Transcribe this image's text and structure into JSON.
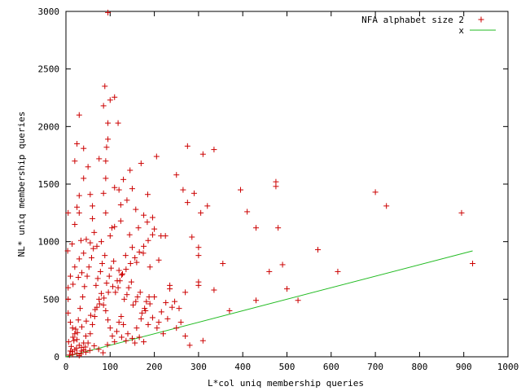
{
  "chart_data": {
    "type": "scatter",
    "title": "",
    "xlabel": "L*col uniq membership queries",
    "ylabel": "NL* uniq membership queries",
    "xlim": [
      0,
      1000
    ],
    "ylim": [
      0,
      3000
    ],
    "x_ticks": [
      0,
      100,
      200,
      300,
      400,
      500,
      600,
      700,
      800,
      900,
      1000
    ],
    "y_ticks": [
      0,
      500,
      1000,
      1500,
      2000,
      2500,
      3000
    ],
    "grid": false,
    "legend_position": "top-right",
    "series": [
      {
        "name": "NFA alphabet size 2",
        "marker": "+",
        "color": "#cc0000",
        "points": [
          [
            95,
            2990
          ],
          [
            88,
            2350
          ],
          [
            110,
            2255
          ],
          [
            85,
            2180
          ],
          [
            100,
            2230
          ],
          [
            30,
            2100
          ],
          [
            95,
            2030
          ],
          [
            118,
            2030
          ],
          [
            95,
            1890
          ],
          [
            92,
            1820
          ],
          [
            25,
            1850
          ],
          [
            40,
            1810
          ],
          [
            275,
            1830
          ],
          [
            335,
            1800
          ],
          [
            310,
            1760
          ],
          [
            205,
            1740
          ],
          [
            75,
            1720
          ],
          [
            20,
            1700
          ],
          [
            50,
            1650
          ],
          [
            90,
            1700
          ],
          [
            130,
            1540
          ],
          [
            145,
            1620
          ],
          [
            170,
            1680
          ],
          [
            250,
            1580
          ],
          [
            90,
            1550
          ],
          [
            40,
            1550
          ],
          [
            30,
            1400
          ],
          [
            25,
            1300
          ],
          [
            55,
            1410
          ],
          [
            60,
            1310
          ],
          [
            85,
            1420
          ],
          [
            110,
            1470
          ],
          [
            120,
            1450
          ],
          [
            150,
            1460
          ],
          [
            185,
            1410
          ],
          [
            265,
            1450
          ],
          [
            290,
            1420
          ],
          [
            475,
            1520
          ],
          [
            475,
            1480
          ],
          [
            395,
            1450
          ],
          [
            700,
            1430
          ],
          [
            725,
            1310
          ],
          [
            895,
            1250
          ],
          [
            410,
            1260
          ],
          [
            320,
            1310
          ],
          [
            305,
            1250
          ],
          [
            275,
            1340
          ],
          [
            430,
            1120
          ],
          [
            480,
            1120
          ],
          [
            90,
            1250
          ],
          [
            60,
            1200
          ],
          [
            30,
            1250
          ],
          [
            20,
            1150
          ],
          [
            5,
            1250
          ],
          [
            110,
            1130
          ],
          [
            200,
            1110
          ],
          [
            215,
            1050
          ],
          [
            225,
            1050
          ],
          [
            285,
            1040
          ],
          [
            300,
            950
          ],
          [
            300,
            880
          ],
          [
            355,
            810
          ],
          [
            570,
            930
          ],
          [
            615,
            740
          ],
          [
            920,
            810
          ],
          [
            490,
            800
          ],
          [
            460,
            740
          ],
          [
            500,
            590
          ],
          [
            525,
            490
          ],
          [
            430,
            490
          ],
          [
            370,
            400
          ],
          [
            335,
            580
          ],
          [
            300,
            650
          ],
          [
            300,
            620
          ],
          [
            270,
            560
          ],
          [
            235,
            620
          ],
          [
            235,
            590
          ],
          [
            210,
            840
          ],
          [
            190,
            780
          ],
          [
            175,
            900
          ],
          [
            160,
            820
          ],
          [
            150,
            950
          ],
          [
            135,
            880
          ],
          [
            120,
            750
          ],
          [
            100,
            1050
          ],
          [
            80,
            1000
          ],
          [
            70,
            960
          ],
          [
            55,
            990
          ],
          [
            40,
            900
          ],
          [
            30,
            850
          ],
          [
            20,
            780
          ],
          [
            10,
            700
          ],
          [
            5,
            600
          ],
          [
            5,
            500
          ],
          [
            5,
            380
          ],
          [
            10,
            300
          ],
          [
            15,
            250
          ],
          [
            20,
            200
          ],
          [
            25,
            150
          ],
          [
            30,
            100
          ],
          [
            35,
            80
          ],
          [
            40,
            60
          ],
          [
            45,
            40
          ],
          [
            50,
            120
          ],
          [
            55,
            200
          ],
          [
            60,
            280
          ],
          [
            65,
            350
          ],
          [
            70,
            430
          ],
          [
            75,
            500
          ],
          [
            80,
            550
          ],
          [
            85,
            450
          ],
          [
            90,
            400
          ],
          [
            95,
            320
          ],
          [
            100,
            250
          ],
          [
            105,
            180
          ],
          [
            110,
            130
          ],
          [
            115,
            220
          ],
          [
            120,
            300
          ],
          [
            125,
            350
          ],
          [
            130,
            280
          ],
          [
            140,
            200
          ],
          [
            150,
            160
          ],
          [
            160,
            250
          ],
          [
            170,
            330
          ],
          [
            180,
            400
          ],
          [
            190,
            460
          ],
          [
            200,
            520
          ],
          [
            210,
            300
          ],
          [
            220,
            200
          ],
          [
            230,
            330
          ],
          [
            240,
            430
          ],
          [
            250,
            250
          ],
          [
            260,
            300
          ],
          [
            270,
            180
          ],
          [
            280,
            100
          ],
          [
            310,
            140
          ],
          [
            10,
            50
          ],
          [
            15,
            20
          ],
          [
            20,
            60
          ],
          [
            25,
            30
          ],
          [
            30,
            10
          ],
          [
            35,
            50
          ],
          [
            40,
            120
          ],
          [
            45,
            180
          ],
          [
            12,
            90
          ],
          [
            18,
            140
          ],
          [
            22,
            240
          ],
          [
            28,
            320
          ],
          [
            32,
            420
          ],
          [
            38,
            520
          ],
          [
            42,
            610
          ],
          [
            48,
            700
          ],
          [
            52,
            780
          ],
          [
            58,
            860
          ],
          [
            62,
            940
          ],
          [
            68,
            620
          ],
          [
            72,
            680
          ],
          [
            78,
            740
          ],
          [
            82,
            810
          ],
          [
            88,
            880
          ],
          [
            92,
            640
          ],
          [
            98,
            700
          ],
          [
            102,
            770
          ],
          [
            108,
            830
          ],
          [
            112,
            560
          ],
          [
            118,
            600
          ],
          [
            122,
            660
          ],
          [
            128,
            720
          ],
          [
            132,
            500
          ],
          [
            138,
            540
          ],
          [
            142,
            600
          ],
          [
            148,
            650
          ],
          [
            152,
            450
          ],
          [
            158,
            480
          ],
          [
            162,
            520
          ],
          [
            168,
            560
          ],
          [
            172,
            380
          ],
          [
            178,
            420
          ],
          [
            182,
            480
          ],
          [
            188,
            520
          ],
          [
            8,
            15
          ],
          [
            14,
            45
          ],
          [
            24,
            75
          ],
          [
            34,
            25
          ],
          [
            44,
            85
          ],
          [
            54,
            55
          ],
          [
            64,
            95
          ],
          [
            74,
            65
          ],
          [
            84,
            35
          ],
          [
            94,
            105
          ],
          [
            6,
            130
          ],
          [
            16,
            170
          ],
          [
            26,
            210
          ],
          [
            36,
            260
          ],
          [
            46,
            310
          ],
          [
            56,
            360
          ],
          [
            66,
            410
          ],
          [
            76,
            460
          ],
          [
            86,
            510
          ],
          [
            96,
            560
          ],
          [
            106,
            610
          ],
          [
            116,
            660
          ],
          [
            126,
            710
          ],
          [
            136,
            760
          ],
          [
            146,
            810
          ],
          [
            156,
            860
          ],
          [
            166,
            910
          ],
          [
            176,
            960
          ],
          [
            186,
            1010
          ],
          [
            196,
            1060
          ],
          [
            46,
            1020
          ],
          [
            64,
            1080
          ],
          [
            104,
            1120
          ],
          [
            124,
            1180
          ],
          [
            144,
            1060
          ],
          [
            164,
            1120
          ],
          [
            184,
            1170
          ],
          [
            124,
            1320
          ],
          [
            138,
            1360
          ],
          [
            158,
            1280
          ],
          [
            176,
            1230
          ],
          [
            196,
            1210
          ],
          [
            34,
            1010
          ],
          [
            14,
            980
          ],
          [
            4,
            920
          ],
          [
            36,
            730
          ],
          [
            28,
            690
          ],
          [
            16,
            630
          ],
          [
            246,
            480
          ],
          [
            256,
            420
          ],
          [
            226,
            470
          ],
          [
            216,
            390
          ],
          [
            196,
            340
          ],
          [
            206,
            250
          ],
          [
            186,
            280
          ],
          [
            166,
            170
          ],
          [
            176,
            130
          ],
          [
            156,
            120
          ],
          [
            136,
            140
          ],
          [
            126,
            170
          ]
        ]
      },
      {
        "name": "x",
        "marker": "line",
        "color": "#22bb22",
        "x": [
          0,
          920
        ],
        "y": [
          0,
          920
        ]
      }
    ]
  }
}
